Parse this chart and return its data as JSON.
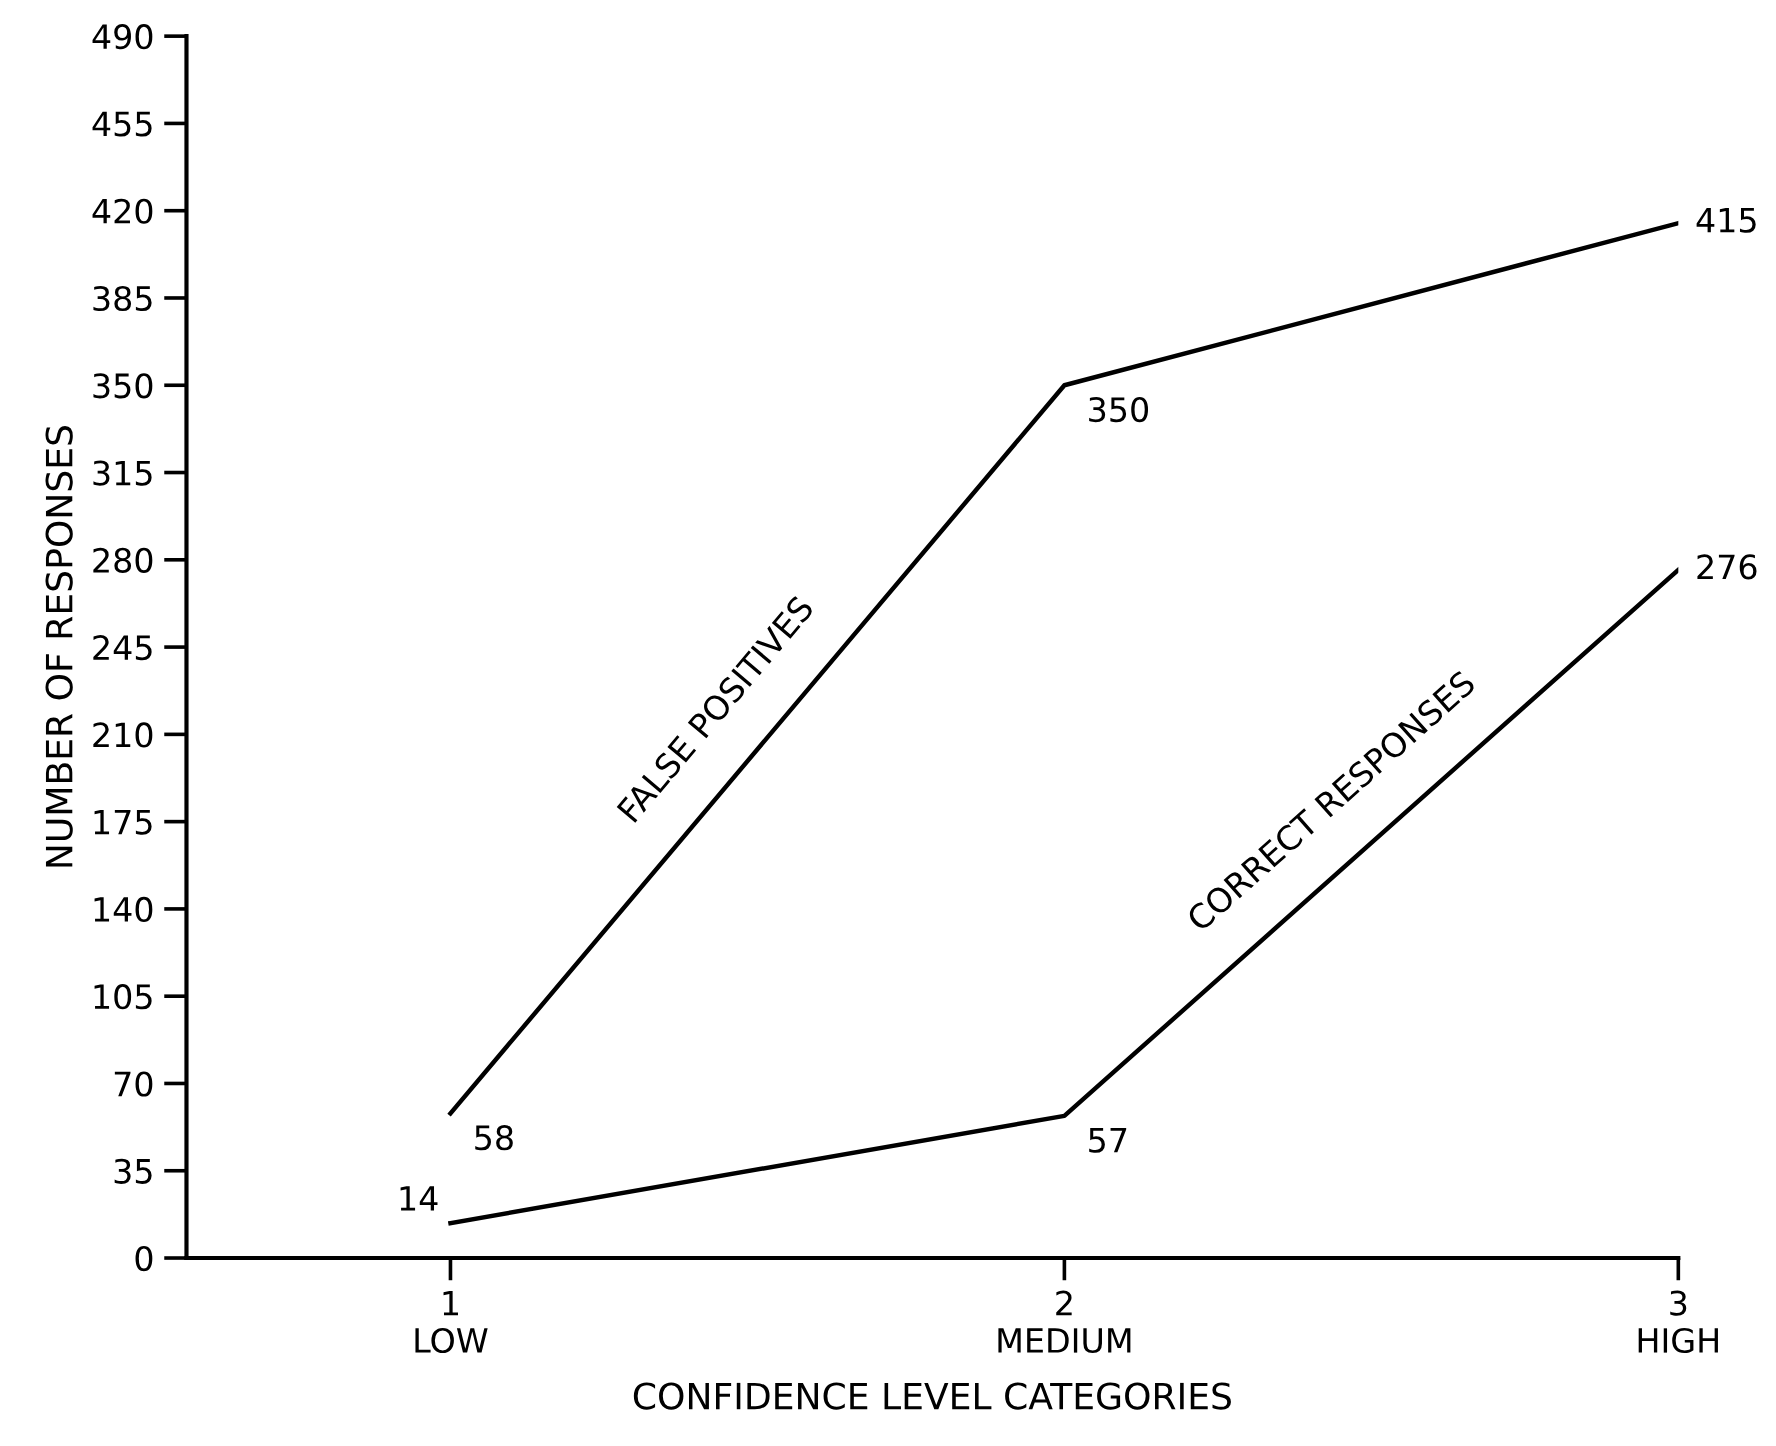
{
  "chart_data": {
    "type": "line",
    "xlabel": "CONFIDENCE LEVEL CATEGORIES",
    "ylabel": "NUMBER OF RESPONSES",
    "x": [
      1,
      2,
      3
    ],
    "series": [
      {
        "name": "FALSE POSITIVES",
        "color": "#000000",
        "values": [
          58,
          350,
          415
        ]
      },
      {
        "name": "CORRECT RESPONSES",
        "color": "#000000",
        "values": [
          14,
          57,
          276
        ]
      }
    ],
    "xlim": [
      0.57,
      3.0
    ],
    "xticks": [
      {
        "value": 1,
        "label": "1\nLOW"
      },
      {
        "value": 2,
        "label": "2\nMEDIUM"
      },
      {
        "value": 3,
        "label": "3\nHIGH"
      }
    ],
    "ylim": [
      0,
      490
    ],
    "yticks": [
      0,
      35,
      70,
      105,
      140,
      175,
      210,
      245,
      280,
      315,
      350,
      385,
      420,
      455,
      490
    ],
    "data_labels": true,
    "grid": false,
    "legend": false,
    "marker": "none",
    "line_style": "solid"
  }
}
